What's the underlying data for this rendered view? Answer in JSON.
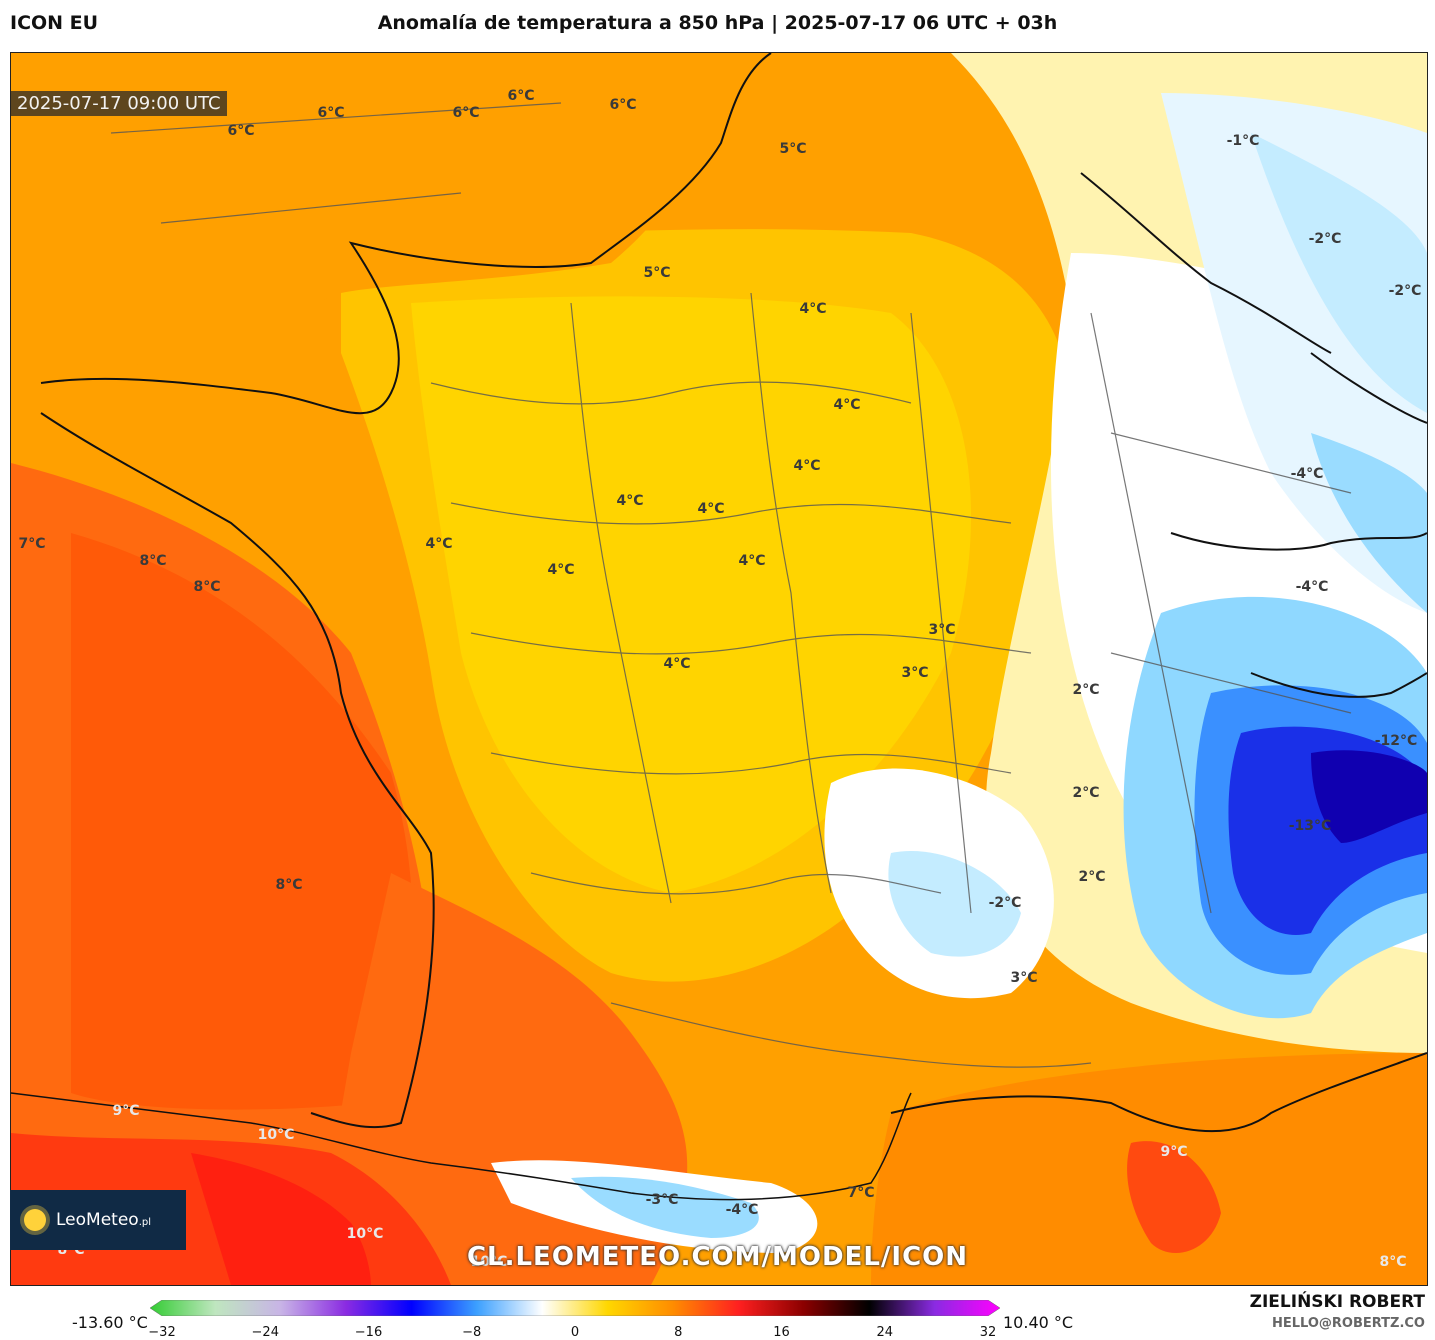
{
  "header": {
    "model": "ICON EU",
    "title": "Anomalía de temperatura a 850 hPa | 2025-07-17 06 UTC + 03h"
  },
  "map": {
    "valid_time": "2025-07-17 09:00 UTC",
    "labels": [
      {
        "text": "6°C"
      },
      {
        "text": "6°C"
      },
      {
        "text": "6°C"
      },
      {
        "text": "6°C"
      },
      {
        "text": "6°C"
      },
      {
        "text": "5°C"
      },
      {
        "text": "-1°C"
      },
      {
        "text": "-2°C"
      },
      {
        "text": "-2°C"
      },
      {
        "text": "5°C"
      },
      {
        "text": "4°C"
      },
      {
        "text": "4°C"
      },
      {
        "text": "4°C"
      },
      {
        "text": "4°C"
      },
      {
        "text": "4°C"
      },
      {
        "text": "-4°C"
      },
      {
        "text": "7°C"
      },
      {
        "text": "8°C"
      },
      {
        "text": "8°C"
      },
      {
        "text": "4°C"
      },
      {
        "text": "4°C"
      },
      {
        "text": "4°C"
      },
      {
        "text": "-4°C"
      },
      {
        "text": "3°C"
      },
      {
        "text": "4°C"
      },
      {
        "text": "3°C"
      },
      {
        "text": "2°C"
      },
      {
        "text": "-12°C"
      },
      {
        "text": "2°C"
      },
      {
        "text": "-13°C"
      },
      {
        "text": "8°C"
      },
      {
        "text": "2°C"
      },
      {
        "text": "-2°C"
      },
      {
        "text": "3°C"
      },
      {
        "text": "9°C"
      },
      {
        "text": "10°C"
      },
      {
        "text": "9°C"
      },
      {
        "text": "-3°C"
      },
      {
        "text": "7°C"
      },
      {
        "text": "-4°C"
      },
      {
        "text": "10°C"
      },
      {
        "text": "8°C"
      },
      {
        "text": "8°C"
      },
      {
        "text": "10°C"
      }
    ]
  },
  "branding": {
    "logo": "LeoMeteo",
    "logo_suffix": ".pl",
    "url": "CL.LEOMETEO.COM/MODEL/ICON",
    "author": "ZIELIŃSKI ROBERT",
    "email": "HELLO@ROBERTZ.CO"
  },
  "colorbar": {
    "min_label": "-13.60 °C",
    "max_label": "10.40 °C",
    "ticks": [
      "−32",
      "−24",
      "−16",
      "−8",
      "0",
      "8",
      "16",
      "24",
      "32"
    ],
    "range": [
      -32,
      32
    ],
    "stops": [
      "#33cc33",
      "#bfe6bf",
      "#c8b4e6",
      "#8a2be2",
      "#0000ff",
      "#3ca0ff",
      "#ffffff",
      "#ffd700",
      "#ff8c00",
      "#ff2020",
      "#8b0000",
      "#000000",
      "#8a2be2",
      "#ff00ff"
    ]
  },
  "colors": {
    "sea_warm": "#ff6a10",
    "land_warm": "#ffa000",
    "land_mild": "#ffd000",
    "land_pale": "#fff0a0",
    "cold_white": "#ffffff",
    "cold_light": "#a8e4ff",
    "cold_mid": "#3aa6ff",
    "cold_deep": "#1020e0",
    "hot_red": "#ff3010"
  }
}
